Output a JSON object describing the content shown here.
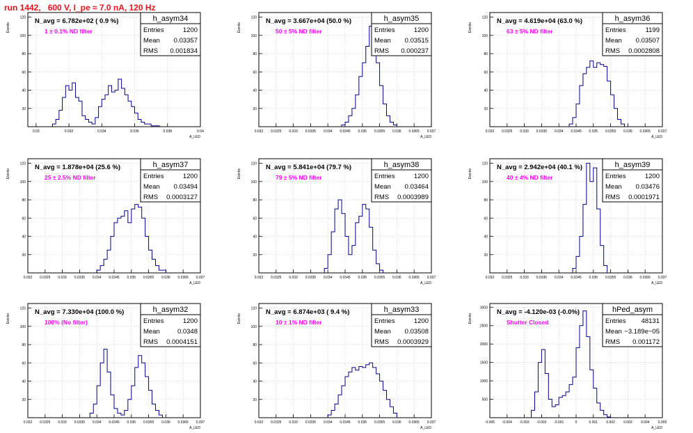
{
  "page_title": "run 1442,   600 V, I_pe ≈ 7.0 nA, 120 Hz",
  "colors": {
    "title": "#e8141c",
    "hist": "#00008b",
    "annotation": "#ff00ff",
    "frame": "#000000",
    "grid": "#bbbbbb"
  },
  "stat_labels": {
    "entries": "Entries",
    "mean": "Mean",
    "rms": "RMS"
  },
  "chart_data": [
    {
      "type": "histogram",
      "name": "h_asym34",
      "title": "N_avg = 6.782e+02 ( 0.9 %)",
      "annotation": "1 ± 0.1% ND filter",
      "ylabel": "Events",
      "xlabel": "A_LED",
      "stats": {
        "entries": "1200",
        "mean": "0.03357",
        "rms": "0.001834"
      },
      "xlim": [
        0.0295,
        0.04
      ],
      "ylim": [
        0,
        125
      ],
      "xticks": [
        0.03,
        0.032,
        0.034,
        0.036,
        0.038,
        0.04
      ],
      "xticklabels": [
        "0.03",
        "0.032",
        "0.034",
        "0.036",
        "0.038",
        "0.04"
      ],
      "yticks": [
        20,
        40,
        60,
        80,
        100,
        120
      ],
      "grid": true,
      "x": [
        0.0305,
        0.031,
        0.0312,
        0.0314,
        0.0316,
        0.0318,
        0.032,
        0.0322,
        0.0324,
        0.0326,
        0.0328,
        0.033,
        0.0332,
        0.0334,
        0.0336,
        0.0338,
        0.034,
        0.0342,
        0.0344,
        0.0346,
        0.0348,
        0.035,
        0.0352,
        0.0354,
        0.0356,
        0.0358,
        0.036,
        0.0362,
        0.0364,
        0.0366,
        0.037,
        0.0375
      ],
      "values": [
        0,
        3,
        8,
        18,
        32,
        45,
        40,
        48,
        32,
        28,
        12,
        8,
        5,
        3,
        10,
        22,
        30,
        35,
        45,
        38,
        40,
        52,
        42,
        35,
        28,
        22,
        15,
        8,
        5,
        3,
        1,
        0
      ]
    },
    {
      "type": "histogram",
      "name": "h_asym35",
      "title": "N_avg = 3.667e+04 (50.0 %)",
      "annotation": "50 ± 5% ND filter",
      "ylabel": "Events",
      "xlabel": "A_LED",
      "stats": {
        "entries": "1200",
        "mean": "0.03515",
        "rms": "0.000237"
      },
      "xlim": [
        0.032,
        0.037
      ],
      "ylim": [
        0,
        125
      ],
      "xticks": [
        0.032,
        0.0325,
        0.033,
        0.0335,
        0.034,
        0.0345,
        0.035,
        0.0355,
        0.036,
        0.0365,
        0.037
      ],
      "xticklabels": [
        "0.032",
        "0.0325",
        "0.033",
        "0.0335",
        "0.034",
        "0.0345",
        "0.035",
        "0.0355",
        "0.036",
        "0.0365",
        "0.037"
      ],
      "yticks": [
        20,
        40,
        60,
        80,
        100,
        120
      ],
      "grid": true,
      "x": [
        0.0343,
        0.0344,
        0.0345,
        0.0346,
        0.0347,
        0.0348,
        0.0349,
        0.035,
        0.0351,
        0.0352,
        0.0353,
        0.0354,
        0.0355,
        0.0356,
        0.0357,
        0.0358,
        0.0359,
        0.036
      ],
      "values": [
        0,
        2,
        5,
        12,
        20,
        35,
        55,
        70,
        88,
        110,
        85,
        70,
        45,
        25,
        12,
        5,
        2,
        0
      ]
    },
    {
      "type": "histogram",
      "name": "h_asym36",
      "title": "N_avg = 4.619e+04 (63.0 %)",
      "annotation": "63 ± 5% ND filter",
      "ylabel": "Events",
      "xlabel": "A_LED",
      "stats": {
        "entries": "1199",
        "mean": "0.03507",
        "rms": "0.0002808"
      },
      "xlim": [
        0.032,
        0.037
      ],
      "ylim": [
        0,
        125
      ],
      "xticks": [
        0.032,
        0.0325,
        0.033,
        0.0335,
        0.034,
        0.0345,
        0.035,
        0.0355,
        0.036,
        0.0365,
        0.037
      ],
      "xticklabels": [
        "0.032",
        "0.0325",
        "0.033",
        "0.0335",
        "0.034",
        "0.0345",
        "0.035",
        "0.0355",
        "0.036",
        "0.0365",
        "0.037"
      ],
      "yticks": [
        20,
        40,
        60,
        80,
        100,
        120
      ],
      "grid": true,
      "x": [
        0.0342,
        0.0343,
        0.0344,
        0.0345,
        0.0346,
        0.0347,
        0.0348,
        0.0349,
        0.035,
        0.0351,
        0.0352,
        0.0353,
        0.0354,
        0.0355,
        0.0356,
        0.0357,
        0.0358,
        0.0359
      ],
      "values": [
        0,
        3,
        10,
        25,
        45,
        58,
        65,
        72,
        65,
        70,
        68,
        66,
        50,
        35,
        20,
        8,
        3,
        0
      ]
    },
    {
      "type": "histogram",
      "name": "h_asym37",
      "title": "N_avg = 1.878e+04 (25.6 %)",
      "annotation": "25 ± 2.5% ND filter",
      "ylabel": "Events",
      "xlabel": "A_LED",
      "stats": {
        "entries": "1200",
        "mean": "0.03494",
        "rms": "0.0003127"
      },
      "xlim": [
        0.032,
        0.037
      ],
      "ylim": [
        0,
        125
      ],
      "xticks": [
        0.032,
        0.0325,
        0.033,
        0.0335,
        0.034,
        0.0345,
        0.035,
        0.0355,
        0.036,
        0.0365,
        0.037
      ],
      "xticklabels": [
        "0.032",
        "0.0325",
        "0.033",
        "0.0335",
        "0.034",
        "0.0345",
        "0.035",
        "0.0355",
        "0.036",
        "0.0365",
        "0.037"
      ],
      "yticks": [
        20,
        40,
        60,
        80,
        100,
        120
      ],
      "grid": true,
      "x": [
        0.0338,
        0.034,
        0.0341,
        0.0342,
        0.0343,
        0.0344,
        0.0345,
        0.0346,
        0.0347,
        0.0348,
        0.0349,
        0.035,
        0.0351,
        0.0352,
        0.0353,
        0.0354,
        0.0355,
        0.0356,
        0.0357,
        0.0358,
        0.036
      ],
      "values": [
        0,
        3,
        8,
        15,
        25,
        40,
        55,
        60,
        62,
        68,
        55,
        70,
        75,
        72,
        60,
        40,
        25,
        15,
        8,
        3,
        0
      ]
    },
    {
      "type": "histogram",
      "name": "h_asym38",
      "title": "N_avg = 5.841e+04 (79.7 %)",
      "annotation": "79 ± 5% ND filter",
      "ylabel": "Events",
      "xlabel": "A_LED",
      "stats": {
        "entries": "1200",
        "mean": "0.03464",
        "rms": "0.0003989"
      },
      "xlim": [
        0.032,
        0.037
      ],
      "ylim": [
        0,
        125
      ],
      "xticks": [
        0.032,
        0.0325,
        0.033,
        0.0335,
        0.034,
        0.0345,
        0.035,
        0.0355,
        0.036,
        0.0365,
        0.037
      ],
      "xticklabels": [
        "0.032",
        "0.0325",
        "0.033",
        "0.0335",
        "0.034",
        "0.0345",
        "0.035",
        "0.0355",
        "0.036",
        "0.0365",
        "0.037"
      ],
      "yticks": [
        20,
        40,
        60,
        80,
        100,
        120
      ],
      "grid": true,
      "x": [
        0.0338,
        0.0339,
        0.034,
        0.0341,
        0.0342,
        0.0343,
        0.0344,
        0.0345,
        0.0346,
        0.0347,
        0.0348,
        0.0349,
        0.035,
        0.0351,
        0.0352,
        0.0353,
        0.0354,
        0.0355,
        0.0356
      ],
      "values": [
        0,
        5,
        20,
        45,
        70,
        80,
        65,
        40,
        20,
        30,
        55,
        62,
        75,
        70,
        50,
        25,
        10,
        3,
        0
      ]
    },
    {
      "type": "histogram",
      "name": "h_asym39",
      "title": "N_avg = 2.942e+04 (40.1 %)",
      "annotation": "40 ± 4% ND filter",
      "ylabel": "Events",
      "xlabel": "A_LED",
      "stats": {
        "entries": "1200",
        "mean": "0.03476",
        "rms": "0.0001971"
      },
      "xlim": [
        0.032,
        0.037
      ],
      "ylim": [
        0,
        125
      ],
      "xticks": [
        0.032,
        0.0325,
        0.033,
        0.0335,
        0.034,
        0.0345,
        0.035,
        0.0355,
        0.036,
        0.0365,
        0.037
      ],
      "xticklabels": [
        "0.032",
        "0.0325",
        "0.033",
        "0.0335",
        "0.034",
        "0.0345",
        "0.035",
        "0.0355",
        "0.036",
        "0.0365",
        "0.037"
      ],
      "yticks": [
        20,
        40,
        60,
        80,
        100,
        120
      ],
      "grid": true,
      "x": [
        0.0343,
        0.0344,
        0.0345,
        0.0346,
        0.0347,
        0.0348,
        0.0349,
        0.035,
        0.0351,
        0.0352,
        0.0353,
        0.0354
      ],
      "values": [
        0,
        5,
        18,
        40,
        75,
        120,
        100,
        115,
        70,
        30,
        8,
        0
      ]
    },
    {
      "type": "histogram",
      "name": "h_asym32",
      "title": "N_avg = 7.330e+04 (100.0 %)",
      "annotation": "100% (No filter)",
      "ylabel": "Events",
      "xlabel": "A_LED",
      "stats": {
        "entries": "1200",
        "mean": "0.0348",
        "rms": "0.0004151"
      },
      "xlim": [
        0.032,
        0.037
      ],
      "ylim": [
        0,
        125
      ],
      "xticks": [
        0.032,
        0.0325,
        0.033,
        0.0335,
        0.034,
        0.0345,
        0.035,
        0.0355,
        0.036,
        0.0365,
        0.037
      ],
      "xticklabels": [
        "0.032",
        "0.0325",
        "0.033",
        "0.0335",
        "0.034",
        "0.0345",
        "0.035",
        "0.0355",
        "0.036",
        "0.0365",
        "0.037"
      ],
      "yticks": [
        20,
        40,
        60,
        80,
        100,
        120
      ],
      "grid": true,
      "x": [
        0.0337,
        0.0338,
        0.0339,
        0.034,
        0.0341,
        0.0342,
        0.0343,
        0.0344,
        0.0345,
        0.0346,
        0.0347,
        0.0348,
        0.0349,
        0.035,
        0.0351,
        0.0352,
        0.0353,
        0.0354,
        0.0355,
        0.0356,
        0.0357,
        0.0358,
        0.0359
      ],
      "values": [
        0,
        5,
        15,
        35,
        60,
        75,
        50,
        25,
        10,
        5,
        3,
        8,
        20,
        35,
        55,
        68,
        60,
        45,
        30,
        15,
        8,
        3,
        0
      ]
    },
    {
      "type": "histogram",
      "name": "h_asym33",
      "title": "N_avg = 6.874e+03 ( 9.4 %)",
      "annotation": "10 ± 1% ND filter",
      "ylabel": "Events",
      "xlabel": "A_LED",
      "stats": {
        "entries": "1200",
        "mean": "0.03508",
        "rms": "0.0003929"
      },
      "xlim": [
        0.032,
        0.037
      ],
      "ylim": [
        0,
        125
      ],
      "xticks": [
        0.032,
        0.0325,
        0.033,
        0.0335,
        0.034,
        0.0345,
        0.035,
        0.0355,
        0.036,
        0.0365,
        0.037
      ],
      "xticklabels": [
        "0.032",
        "0.0325",
        "0.033",
        "0.0335",
        "0.034",
        "0.0345",
        "0.035",
        "0.0355",
        "0.036",
        "0.0365",
        "0.037"
      ],
      "yticks": [
        20,
        40,
        60,
        80,
        100,
        120
      ],
      "grid": true,
      "x": [
        0.0338,
        0.034,
        0.0341,
        0.0342,
        0.0343,
        0.0344,
        0.0345,
        0.0346,
        0.0347,
        0.0348,
        0.0349,
        0.035,
        0.0351,
        0.0352,
        0.0353,
        0.0354,
        0.0355,
        0.0356,
        0.0357,
        0.0358,
        0.0359,
        0.036
      ],
      "values": [
        0,
        3,
        8,
        15,
        25,
        35,
        45,
        50,
        55,
        52,
        56,
        55,
        58,
        60,
        55,
        48,
        40,
        30,
        20,
        12,
        5,
        0
      ]
    },
    {
      "type": "histogram",
      "name": "hPed_asym",
      "title": "N_avg = -4.120e-03 (-0.0%)",
      "annotation": "Shutter Closed",
      "ylabel": "Events",
      "xlabel": "A_LED",
      "stats": {
        "entries": "48131",
        "mean": "−3.189e−05",
        "rms": "0.001172"
      },
      "xlim": [
        -0.005,
        0.005
      ],
      "ylim": [
        0,
        3100
      ],
      "xticks": [
        -0.005,
        -0.004,
        -0.003,
        -0.002,
        -0.001,
        0,
        0.001,
        0.002,
        0.003,
        0.004,
        0.005
      ],
      "xticklabels": [
        "-0.005",
        "-0.004",
        "-0.003",
        "-0.002",
        "-0.001",
        "0",
        "0.001",
        "0.002",
        "0.003",
        "0.004",
        "0.005"
      ],
      "yticks": [
        500,
        1000,
        1500,
        2000,
        2500,
        3000
      ],
      "grid": true,
      "x": [
        -0.0028,
        -0.0026,
        -0.0024,
        -0.0022,
        -0.002,
        -0.0018,
        -0.0016,
        -0.0014,
        -0.0012,
        -0.001,
        -0.0008,
        -0.0006,
        -0.0004,
        -0.0002,
        0,
        0.0002,
        0.0004,
        0.0006,
        0.0008,
        0.001,
        0.0012,
        0.0014,
        0.0016,
        0.0018,
        0.002
      ],
      "values": [
        0,
        200,
        700,
        1500,
        1850,
        1200,
        500,
        300,
        350,
        550,
        600,
        700,
        900,
        1100,
        1900,
        2500,
        2900,
        2200,
        1300,
        800,
        400,
        200,
        80,
        20,
        0
      ]
    }
  ]
}
